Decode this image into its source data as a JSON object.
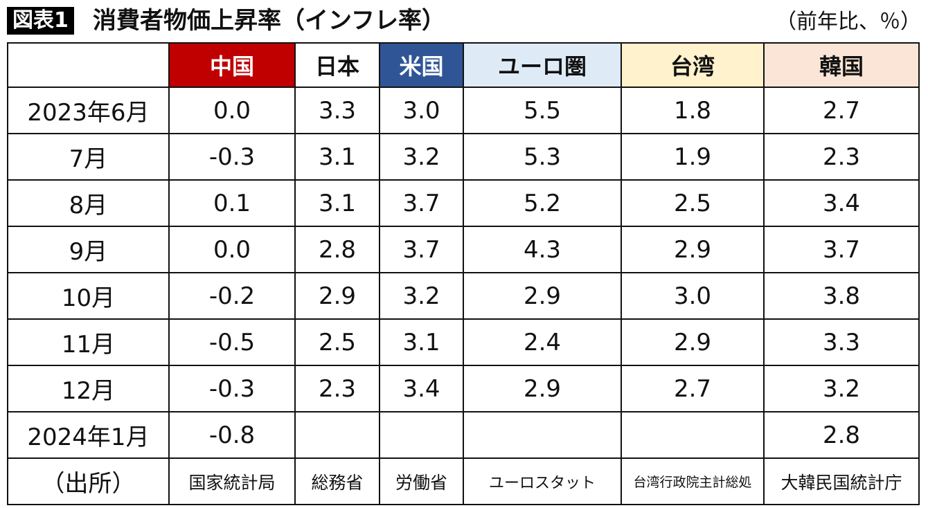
{
  "figure_label": "図表1",
  "title": "消費者物価上昇率（インフレ率）",
  "unit": "（前年比、％）",
  "header_colors": {
    "china": "#c00000",
    "japan": "#ffffff",
    "us": "#2f5597",
    "euro": "#deebf7",
    "taiwan": "#fff2cc",
    "korea": "#fbe5d6"
  },
  "columns": [
    {
      "label": "",
      "color": "#ffffff",
      "text_color": "#111111"
    },
    {
      "label": "中国",
      "color": "#c00000",
      "text_color": "#ffffff"
    },
    {
      "label": "日本",
      "color": "#ffffff",
      "text_color": "#111111"
    },
    {
      "label": "米国",
      "color": "#2f5597",
      "text_color": "#ffffff"
    },
    {
      "label": "ユーロ圏",
      "color": "#deebf7",
      "text_color": "#111111"
    },
    {
      "label": "台湾",
      "color": "#fff2cc",
      "text_color": "#111111"
    },
    {
      "label": "韓国",
      "color": "#fbe5d6",
      "text_color": "#111111"
    }
  ],
  "rows": [
    {
      "label": "2023年6月",
      "values": [
        "0.0",
        "3.3",
        "3.0",
        "5.5",
        "1.8",
        "2.7"
      ]
    },
    {
      "label": "7月",
      "values": [
        "-0.3",
        "3.1",
        "3.2",
        "5.3",
        "1.9",
        "2.3"
      ]
    },
    {
      "label": "8月",
      "values": [
        "0.1",
        "3.1",
        "3.7",
        "5.2",
        "2.5",
        "3.4"
      ]
    },
    {
      "label": "9月",
      "values": [
        "0.0",
        "2.8",
        "3.7",
        "4.3",
        "2.9",
        "3.7"
      ]
    },
    {
      "label": "10月",
      "values": [
        "-0.2",
        "2.9",
        "3.2",
        "2.9",
        "3.0",
        "3.8"
      ]
    },
    {
      "label": "11月",
      "values": [
        "-0.5",
        "2.5",
        "3.1",
        "2.4",
        "2.9",
        "3.3"
      ]
    },
    {
      "label": "12月",
      "values": [
        "-0.3",
        "2.3",
        "3.4",
        "2.9",
        "2.7",
        "3.2"
      ]
    },
    {
      "label": "2024年1月",
      "values": [
        "-0.8",
        "",
        "",
        "",
        "",
        "2.8"
      ]
    }
  ],
  "source_row": {
    "label": "（出所）",
    "values": [
      "国家統計局",
      "総務省",
      "労働省",
      "ユーロスタット",
      "台湾行政院主計総処",
      "大韓民国統計庁"
    ]
  }
}
